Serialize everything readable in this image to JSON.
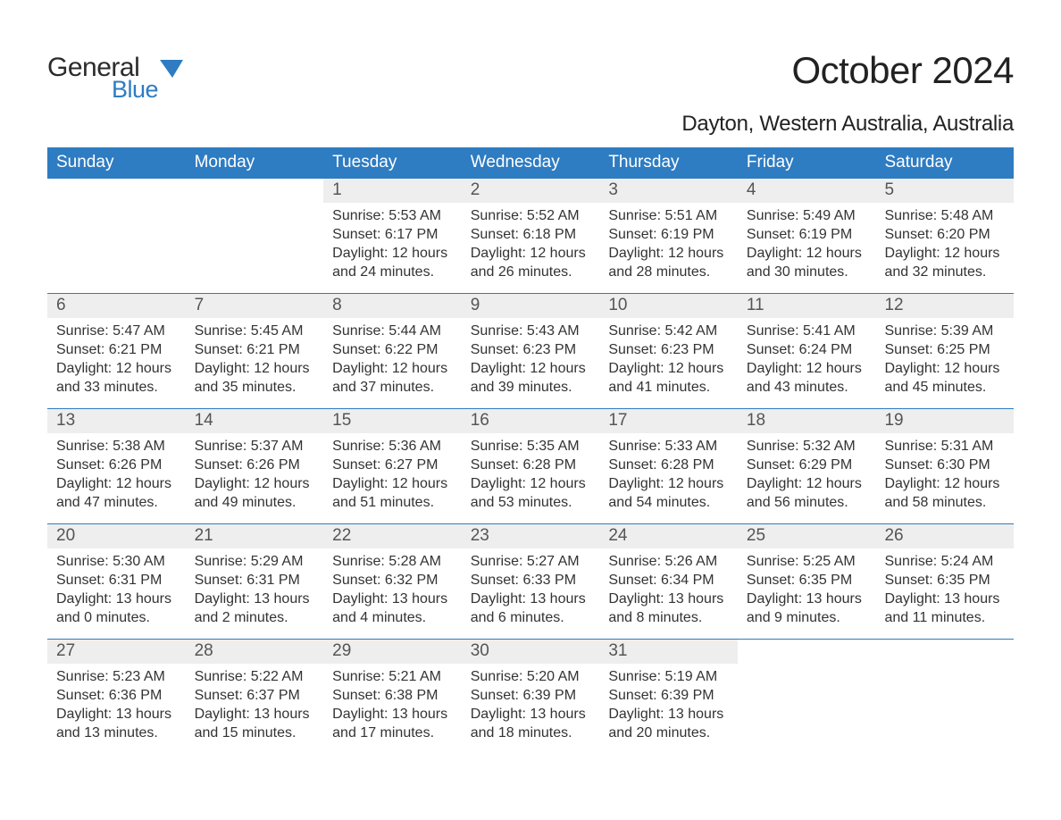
{
  "brand": {
    "word1": "General",
    "word2": "Blue",
    "icon_color": "#2e7cc2"
  },
  "title": "October 2024",
  "location": "Dayton, Western Australia, Australia",
  "colors": {
    "header_bg": "#2e7cc2",
    "header_text": "#ffffff",
    "daynum_bg": "#eeeeee",
    "week_border": "#2e7cc2",
    "body_text": "#333333",
    "background": "#ffffff"
  },
  "day_names": [
    "Sunday",
    "Monday",
    "Tuesday",
    "Wednesday",
    "Thursday",
    "Friday",
    "Saturday"
  ],
  "labels": {
    "sunrise": "Sunrise:",
    "sunset": "Sunset:",
    "daylight": "Daylight:"
  },
  "weeks": [
    [
      null,
      null,
      {
        "n": "1",
        "sunrise": "5:53 AM",
        "sunset": "6:17 PM",
        "dl_h": "12",
        "dl_m": "24"
      },
      {
        "n": "2",
        "sunrise": "5:52 AM",
        "sunset": "6:18 PM",
        "dl_h": "12",
        "dl_m": "26"
      },
      {
        "n": "3",
        "sunrise": "5:51 AM",
        "sunset": "6:19 PM",
        "dl_h": "12",
        "dl_m": "28"
      },
      {
        "n": "4",
        "sunrise": "5:49 AM",
        "sunset": "6:19 PM",
        "dl_h": "12",
        "dl_m": "30"
      },
      {
        "n": "5",
        "sunrise": "5:48 AM",
        "sunset": "6:20 PM",
        "dl_h": "12",
        "dl_m": "32"
      }
    ],
    [
      {
        "n": "6",
        "sunrise": "5:47 AM",
        "sunset": "6:21 PM",
        "dl_h": "12",
        "dl_m": "33"
      },
      {
        "n": "7",
        "sunrise": "5:45 AM",
        "sunset": "6:21 PM",
        "dl_h": "12",
        "dl_m": "35"
      },
      {
        "n": "8",
        "sunrise": "5:44 AM",
        "sunset": "6:22 PM",
        "dl_h": "12",
        "dl_m": "37"
      },
      {
        "n": "9",
        "sunrise": "5:43 AM",
        "sunset": "6:23 PM",
        "dl_h": "12",
        "dl_m": "39"
      },
      {
        "n": "10",
        "sunrise": "5:42 AM",
        "sunset": "6:23 PM",
        "dl_h": "12",
        "dl_m": "41"
      },
      {
        "n": "11",
        "sunrise": "5:41 AM",
        "sunset": "6:24 PM",
        "dl_h": "12",
        "dl_m": "43"
      },
      {
        "n": "12",
        "sunrise": "5:39 AM",
        "sunset": "6:25 PM",
        "dl_h": "12",
        "dl_m": "45"
      }
    ],
    [
      {
        "n": "13",
        "sunrise": "5:38 AM",
        "sunset": "6:26 PM",
        "dl_h": "12",
        "dl_m": "47"
      },
      {
        "n": "14",
        "sunrise": "5:37 AM",
        "sunset": "6:26 PM",
        "dl_h": "12",
        "dl_m": "49"
      },
      {
        "n": "15",
        "sunrise": "5:36 AM",
        "sunset": "6:27 PM",
        "dl_h": "12",
        "dl_m": "51"
      },
      {
        "n": "16",
        "sunrise": "5:35 AM",
        "sunset": "6:28 PM",
        "dl_h": "12",
        "dl_m": "53"
      },
      {
        "n": "17",
        "sunrise": "5:33 AM",
        "sunset": "6:28 PM",
        "dl_h": "12",
        "dl_m": "54"
      },
      {
        "n": "18",
        "sunrise": "5:32 AM",
        "sunset": "6:29 PM",
        "dl_h": "12",
        "dl_m": "56"
      },
      {
        "n": "19",
        "sunrise": "5:31 AM",
        "sunset": "6:30 PM",
        "dl_h": "12",
        "dl_m": "58"
      }
    ],
    [
      {
        "n": "20",
        "sunrise": "5:30 AM",
        "sunset": "6:31 PM",
        "dl_h": "13",
        "dl_m": "0"
      },
      {
        "n": "21",
        "sunrise": "5:29 AM",
        "sunset": "6:31 PM",
        "dl_h": "13",
        "dl_m": "2"
      },
      {
        "n": "22",
        "sunrise": "5:28 AM",
        "sunset": "6:32 PM",
        "dl_h": "13",
        "dl_m": "4"
      },
      {
        "n": "23",
        "sunrise": "5:27 AM",
        "sunset": "6:33 PM",
        "dl_h": "13",
        "dl_m": "6"
      },
      {
        "n": "24",
        "sunrise": "5:26 AM",
        "sunset": "6:34 PM",
        "dl_h": "13",
        "dl_m": "8"
      },
      {
        "n": "25",
        "sunrise": "5:25 AM",
        "sunset": "6:35 PM",
        "dl_h": "13",
        "dl_m": "9"
      },
      {
        "n": "26",
        "sunrise": "5:24 AM",
        "sunset": "6:35 PM",
        "dl_h": "13",
        "dl_m": "11"
      }
    ],
    [
      {
        "n": "27",
        "sunrise": "5:23 AM",
        "sunset": "6:36 PM",
        "dl_h": "13",
        "dl_m": "13"
      },
      {
        "n": "28",
        "sunrise": "5:22 AM",
        "sunset": "6:37 PM",
        "dl_h": "13",
        "dl_m": "15"
      },
      {
        "n": "29",
        "sunrise": "5:21 AM",
        "sunset": "6:38 PM",
        "dl_h": "13",
        "dl_m": "17"
      },
      {
        "n": "30",
        "sunrise": "5:20 AM",
        "sunset": "6:39 PM",
        "dl_h": "13",
        "dl_m": "18"
      },
      {
        "n": "31",
        "sunrise": "5:19 AM",
        "sunset": "6:39 PM",
        "dl_h": "13",
        "dl_m": "20"
      },
      null,
      null
    ]
  ]
}
